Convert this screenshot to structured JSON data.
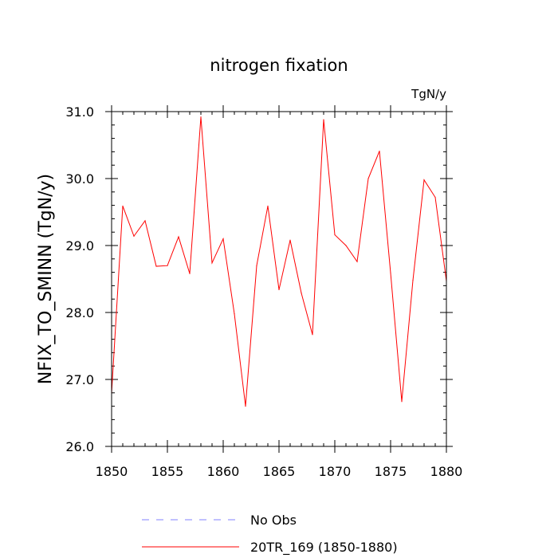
{
  "chart_data": {
    "type": "line",
    "title": "nitrogen fixation",
    "units_label": "TgN/y",
    "xlabel": "",
    "ylabel": "NFIX_TO_SMINN  (TgN/y)",
    "xlim": [
      1850,
      1880
    ],
    "ylim": [
      26.0,
      31.0
    ],
    "x_ticks": [
      1850,
      1855,
      1860,
      1865,
      1870,
      1875,
      1880
    ],
    "x_tick_labels": [
      "1850",
      "1855",
      "1860",
      "1865",
      "1870",
      "1875",
      "1880"
    ],
    "y_ticks": [
      26.0,
      27.0,
      28.0,
      29.0,
      30.0,
      31.0
    ],
    "y_tick_labels": [
      "26.0",
      "27.0",
      "28.0",
      "29.0",
      "30.0",
      "31.0"
    ],
    "grid": false,
    "legend_position": "bottom",
    "series": [
      {
        "name": "20TR_169 (1850-1880)",
        "color": "#ff0000",
        "style": "solid",
        "x": [
          1850,
          1851,
          1852,
          1853,
          1854,
          1855,
          1856,
          1857,
          1858,
          1859,
          1860,
          1861,
          1862,
          1863,
          1864,
          1865,
          1866,
          1867,
          1868,
          1869,
          1870,
          1871,
          1872,
          1873,
          1874,
          1875,
          1876,
          1877,
          1878,
          1879,
          1880
        ],
        "values": [
          26.8,
          29.59,
          29.14,
          29.37,
          28.69,
          28.7,
          29.13,
          28.58,
          30.92,
          28.74,
          29.1,
          27.98,
          26.6,
          28.7,
          29.59,
          28.34,
          29.08,
          28.29,
          27.67,
          30.88,
          29.16,
          29.0,
          28.76,
          30.0,
          30.41,
          28.59,
          26.67,
          28.48,
          29.98,
          29.72,
          28.47
        ]
      }
    ],
    "legend": [
      {
        "name": "No Obs",
        "color": "#8080ff",
        "style": "dashed"
      },
      {
        "name": "20TR_169 (1850-1880)",
        "color": "#ff0000",
        "style": "solid"
      }
    ]
  }
}
